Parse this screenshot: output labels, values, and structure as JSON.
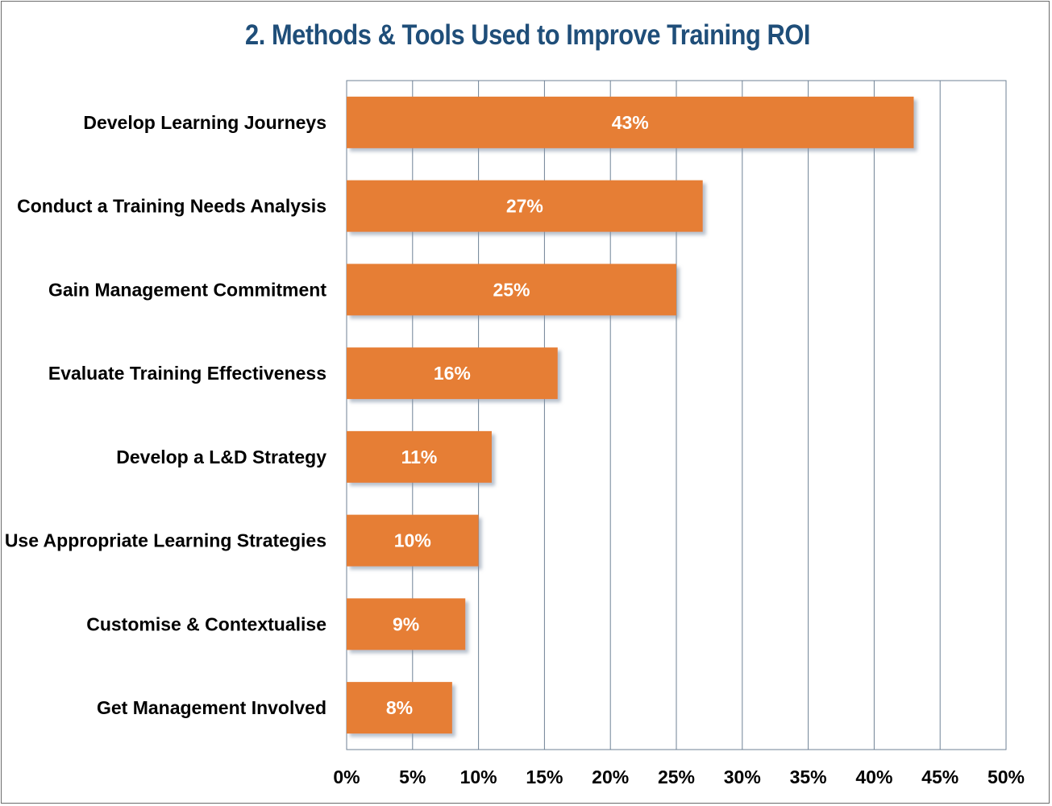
{
  "colors": {
    "bar": "#e67e34",
    "grid": "#6f8296",
    "title": "#1f4e79",
    "shadow": "#9aa8b8"
  },
  "chart_data": {
    "type": "bar",
    "orientation": "horizontal",
    "title": "2. Methods & Tools Used to Improve Training ROI",
    "xlabel": "",
    "ylabel": "",
    "categories": [
      "Develop Learning Journeys",
      "Conduct a Training Needs Analysis",
      "Gain Management Commitment",
      "Evaluate Training Effectiveness",
      "Develop a L&D Strategy",
      "Use Appropriate Learning Strategies",
      "Customise & Contextualise",
      "Get Management Involved"
    ],
    "values": [
      43,
      27,
      25,
      16,
      11,
      10,
      9,
      8
    ],
    "data_labels": [
      "43%",
      "27%",
      "25%",
      "16%",
      "11%",
      "10%",
      "9%",
      "8%"
    ],
    "xlim": [
      0,
      50
    ],
    "x_ticks": [
      "0%",
      "5%",
      "10%",
      "15%",
      "20%",
      "25%",
      "30%",
      "35%",
      "40%",
      "45%",
      "50%"
    ],
    "grid": true,
    "legend": "none"
  }
}
